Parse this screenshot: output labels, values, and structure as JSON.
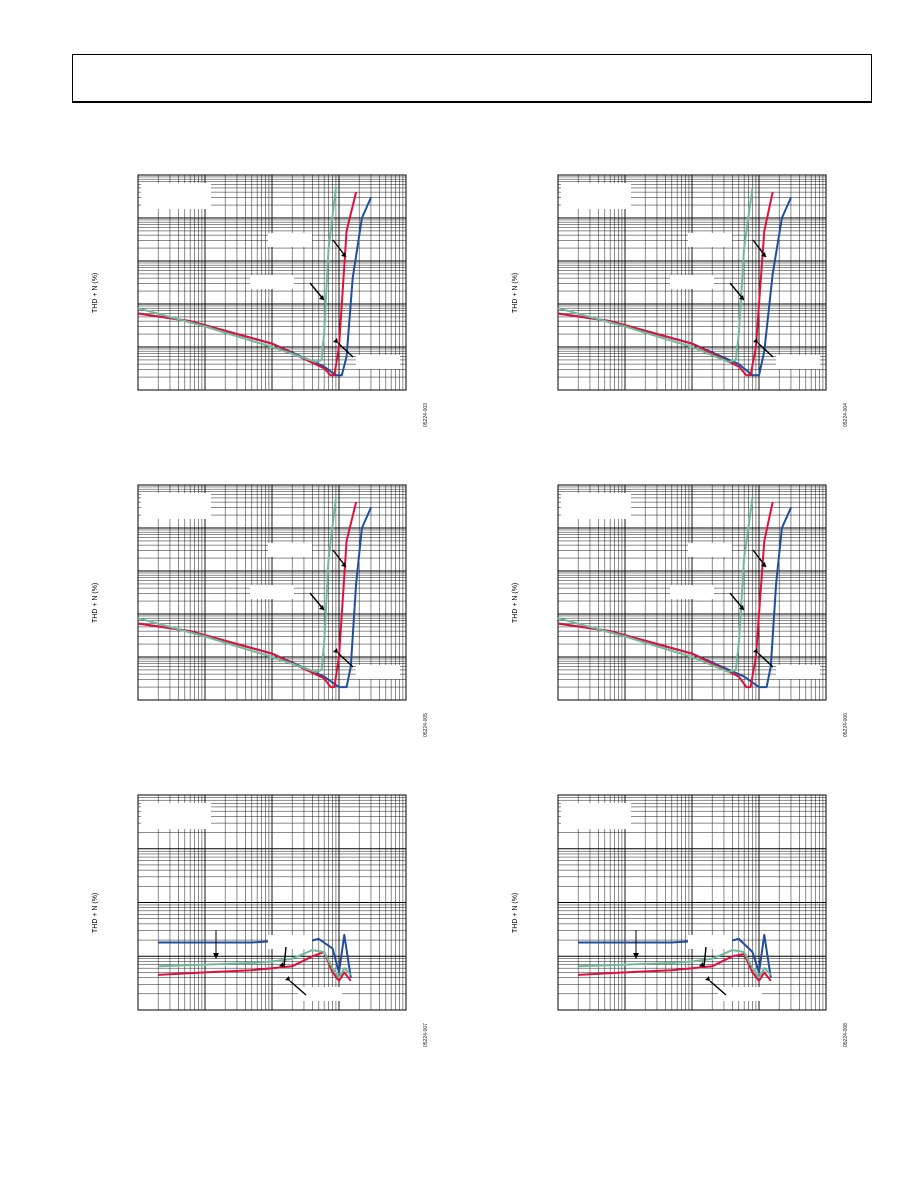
{
  "page": {
    "header": ""
  },
  "colors": {
    "blue": "#1f4e9c",
    "red": "#e0103c",
    "green": "#6fba98"
  },
  "chart_data": [
    {
      "type": "line",
      "ylabel": "THD + N (%)",
      "figure_id": "05224-003",
      "xscale": "log",
      "yscale": "log",
      "grid": true,
      "xlim": [
        0.001,
        10
      ],
      "ylim": [
        0.001,
        100
      ],
      "series": [
        {
          "color": "#1f4e9c",
          "x": [
            0.001,
            0.006,
            0.1,
            0.6,
            0.9,
            1.1,
            1.3,
            1.6,
            2.2,
            3
          ],
          "y": [
            0.06,
            0.04,
            0.012,
            0.0035,
            0.0022,
            0.0022,
            0.006,
            0.4,
            10,
            30
          ]
        },
        {
          "color": "#e0103c",
          "x": [
            0.001,
            0.006,
            0.1,
            0.6,
            0.75,
            0.85,
            1.0,
            1.3,
            1.8
          ],
          "y": [
            0.06,
            0.04,
            0.012,
            0.0032,
            0.0022,
            0.0022,
            0.01,
            5,
            40
          ]
        },
        {
          "color": "#6fba98",
          "x": [
            0.001,
            0.01,
            0.1,
            0.45,
            0.55,
            0.6,
            0.7,
            0.9
          ],
          "y": [
            0.08,
            0.03,
            0.01,
            0.0045,
            0.005,
            0.02,
            2,
            50
          ]
        }
      ]
    },
    {
      "type": "line",
      "ylabel": "THD + N (%)",
      "figure_id": "05224-004",
      "xscale": "log",
      "yscale": "log",
      "grid": true,
      "xlim": [
        0.001,
        10
      ],
      "ylim": [
        0.001,
        100
      ],
      "series": [
        {
          "color": "#1f4e9c",
          "x": [
            0.001,
            0.006,
            0.1,
            0.5,
            0.8,
            1.0,
            1.2,
            1.6,
            2.2,
            3
          ],
          "y": [
            0.06,
            0.04,
            0.012,
            0.004,
            0.0022,
            0.0022,
            0.008,
            0.5,
            10,
            30
          ]
        },
        {
          "color": "#e0103c",
          "x": [
            0.001,
            0.006,
            0.1,
            0.5,
            0.65,
            0.75,
            0.9,
            1.2,
            1.6
          ],
          "y": [
            0.06,
            0.04,
            0.012,
            0.0035,
            0.0022,
            0.0022,
            0.01,
            5,
            40
          ]
        },
        {
          "color": "#6fba98",
          "x": [
            0.001,
            0.01,
            0.1,
            0.35,
            0.45,
            0.5,
            0.6,
            0.8
          ],
          "y": [
            0.08,
            0.03,
            0.01,
            0.0045,
            0.005,
            0.02,
            2,
            50
          ]
        }
      ]
    },
    {
      "type": "line",
      "ylabel": "THD + N (%)",
      "figure_id": "05224-005",
      "xscale": "log",
      "yscale": "log",
      "grid": true,
      "xlim": [
        0.001,
        10
      ],
      "ylim": [
        0.001,
        100
      ],
      "series": [
        {
          "color": "#1f4e9c",
          "x": [
            0.001,
            0.006,
            0.1,
            0.6,
            1.0,
            1.3,
            1.5,
            1.8,
            2.2,
            3
          ],
          "y": [
            0.06,
            0.04,
            0.012,
            0.0035,
            0.002,
            0.002,
            0.006,
            0.5,
            10,
            30
          ]
        },
        {
          "color": "#e0103c",
          "x": [
            0.001,
            0.006,
            0.1,
            0.6,
            0.75,
            0.85,
            1.0,
            1.3,
            1.8
          ],
          "y": [
            0.06,
            0.04,
            0.012,
            0.0032,
            0.002,
            0.002,
            0.01,
            5,
            40
          ]
        },
        {
          "color": "#6fba98",
          "x": [
            0.001,
            0.01,
            0.1,
            0.45,
            0.55,
            0.6,
            0.7,
            0.9
          ],
          "y": [
            0.08,
            0.03,
            0.01,
            0.0045,
            0.005,
            0.02,
            2,
            50
          ]
        }
      ]
    },
    {
      "type": "line",
      "ylabel": "THD + N (%)",
      "figure_id": "05224-006",
      "xscale": "log",
      "yscale": "log",
      "grid": true,
      "xlim": [
        0.001,
        10
      ],
      "ylim": [
        0.001,
        100
      ],
      "series": [
        {
          "color": "#1f4e9c",
          "x": [
            0.001,
            0.006,
            0.1,
            0.6,
            1.0,
            1.3,
            1.5,
            1.8,
            2.2,
            3
          ],
          "y": [
            0.06,
            0.04,
            0.012,
            0.0035,
            0.002,
            0.002,
            0.006,
            0.5,
            10,
            30
          ]
        },
        {
          "color": "#e0103c",
          "x": [
            0.001,
            0.006,
            0.1,
            0.5,
            0.65,
            0.75,
            0.9,
            1.2,
            1.6
          ],
          "y": [
            0.06,
            0.04,
            0.012,
            0.0035,
            0.002,
            0.002,
            0.01,
            5,
            40
          ]
        },
        {
          "color": "#6fba98",
          "x": [
            0.001,
            0.01,
            0.1,
            0.35,
            0.45,
            0.5,
            0.6,
            0.8
          ],
          "y": [
            0.08,
            0.03,
            0.01,
            0.0045,
            0.005,
            0.02,
            2,
            50
          ]
        }
      ]
    },
    {
      "type": "line",
      "ylabel": "THD + N (%)",
      "figure_id": "05224-007",
      "xscale": "log",
      "yscale": "log",
      "grid": true,
      "xlim": [
        0.01,
        100
      ],
      "ylim": [
        0.001,
        10
      ],
      "series": [
        {
          "color": "#1f4e9c",
          "x": [
            0.02,
            0.1,
            0.5,
            1,
            2,
            3,
            5,
            8,
            10,
            12,
            15
          ],
          "y": [
            0.018,
            0.018,
            0.018,
            0.019,
            0.02,
            0.018,
            0.021,
            0.014,
            0.005,
            0.025,
            0.004
          ]
        },
        {
          "color": "#e0103c",
          "x": [
            0.02,
            0.1,
            0.5,
            1,
            2,
            4,
            6,
            8,
            10,
            12,
            15
          ],
          "y": [
            0.0045,
            0.005,
            0.0055,
            0.006,
            0.0065,
            0.01,
            0.012,
            0.005,
            0.0035,
            0.005,
            0.0035
          ]
        },
        {
          "color": "#6fba98",
          "x": [
            0.02,
            0.1,
            0.5,
            1,
            2,
            4,
            6,
            8,
            10,
            12,
            15
          ],
          "y": [
            0.0065,
            0.007,
            0.0075,
            0.008,
            0.009,
            0.013,
            0.012,
            0.006,
            0.004,
            0.006,
            0.0045
          ]
        }
      ]
    },
    {
      "type": "line",
      "ylabel": "THD + N (%)",
      "figure_id": "05224-008",
      "xscale": "log",
      "yscale": "log",
      "grid": true,
      "xlim": [
        0.01,
        100
      ],
      "ylim": [
        0.001,
        10
      ],
      "series": [
        {
          "color": "#1f4e9c",
          "x": [
            0.02,
            0.1,
            0.5,
            1,
            2,
            3,
            5,
            8,
            10,
            12,
            15
          ],
          "y": [
            0.018,
            0.018,
            0.018,
            0.019,
            0.02,
            0.018,
            0.021,
            0.012,
            0.005,
            0.025,
            0.004
          ]
        },
        {
          "color": "#e0103c",
          "x": [
            0.02,
            0.1,
            0.5,
            1,
            2,
            4,
            6,
            8,
            10,
            12,
            15
          ],
          "y": [
            0.0045,
            0.005,
            0.0055,
            0.006,
            0.0065,
            0.01,
            0.011,
            0.005,
            0.0035,
            0.005,
            0.0035
          ]
        },
        {
          "color": "#6fba98",
          "x": [
            0.02,
            0.1,
            0.5,
            1,
            2,
            4,
            6,
            8,
            10,
            12,
            15
          ],
          "y": [
            0.0065,
            0.007,
            0.0075,
            0.008,
            0.009,
            0.013,
            0.012,
            0.006,
            0.004,
            0.006,
            0.0045
          ]
        }
      ]
    }
  ]
}
